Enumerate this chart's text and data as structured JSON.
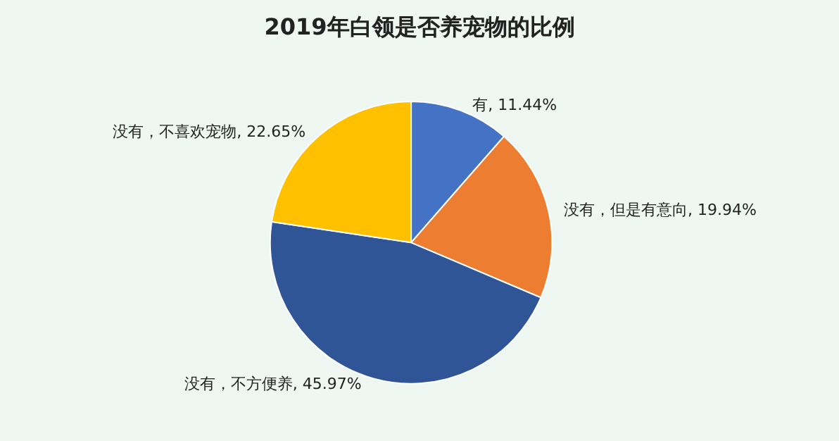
{
  "chart_data": {
    "type": "pie",
    "title": "2019年白领是否养宠物的比例",
    "categories": [
      "有",
      "没有，但是有意向",
      "没有，不方便养",
      "没有，不喜欢宠物"
    ],
    "values": [
      11.44,
      19.94,
      45.97,
      22.65
    ],
    "value_labels": [
      "11.44%",
      "19.94%",
      "45.97%",
      "22.65%"
    ],
    "colors": [
      "#4472c4",
      "#ed7d31",
      "#2f5597",
      "#ffc000"
    ]
  }
}
